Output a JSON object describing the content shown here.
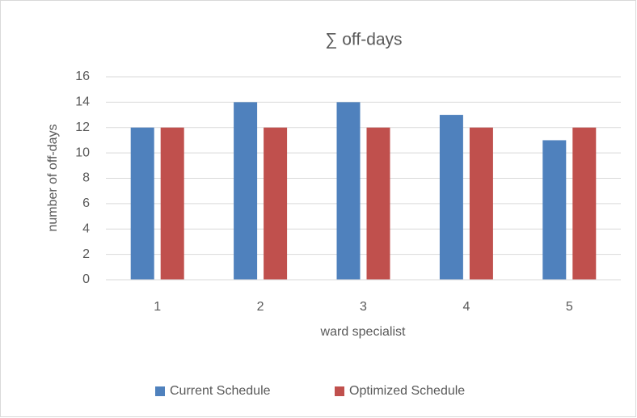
{
  "chart_data": {
    "type": "bar",
    "title": "∑ off-days",
    "x_label": "ward specialist",
    "y_label": "number of off-days",
    "categories": [
      "1",
      "2",
      "3",
      "4",
      "5"
    ],
    "series": [
      {
        "name": "Current Schedule",
        "color": "#4f81bd",
        "values": [
          12,
          14,
          14,
          13,
          11
        ]
      },
      {
        "name": "Optimized Schedule",
        "color": "#c0504d",
        "values": [
          12,
          12,
          12,
          12,
          12
        ]
      }
    ],
    "ylim": [
      0,
      16
    ],
    "yticks": [
      0,
      2,
      4,
      6,
      8,
      10,
      12,
      14,
      16
    ],
    "grid": true,
    "legend": "bottom"
  }
}
